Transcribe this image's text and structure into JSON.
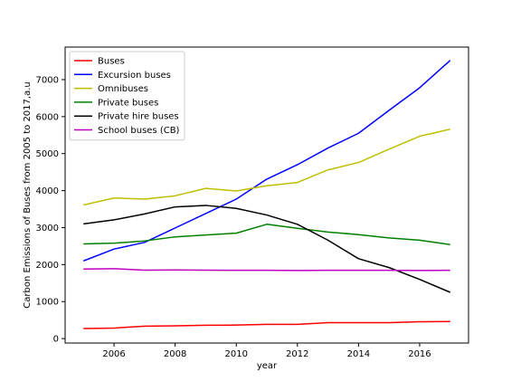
{
  "chart_data": {
    "type": "line",
    "title": "",
    "xlabel": "year",
    "ylabel": "Carbon Emissions of Buses from 2005 to 2017,a.u",
    "x": [
      2005,
      2006,
      2007,
      2008,
      2009,
      2010,
      2011,
      2012,
      2013,
      2014,
      2015,
      2016,
      2017
    ],
    "xlim": [
      2004.4,
      2017.6
    ],
    "ylim": [
      -120,
      7880
    ],
    "xticks": [
      2006,
      2008,
      2010,
      2012,
      2014,
      2016
    ],
    "yticks": [
      0,
      1000,
      2000,
      3000,
      4000,
      5000,
      6000,
      7000
    ],
    "grid": false,
    "legend_position": "top-left",
    "series": [
      {
        "name": "Buses",
        "color": "#ff0000",
        "values": [
          270,
          285,
          335,
          345,
          360,
          365,
          385,
          385,
          430,
          430,
          430,
          455,
          460
        ]
      },
      {
        "name": "Excursion buses",
        "color": "#0000ff",
        "values": [
          2100,
          2420,
          2600,
          2990,
          3380,
          3770,
          4310,
          4700,
          5150,
          5550,
          6170,
          6780,
          7520
        ]
      },
      {
        "name": "Omnibuses",
        "color": "#bfbf00",
        "values": [
          3610,
          3800,
          3770,
          3860,
          4060,
          3990,
          4130,
          4220,
          4560,
          4760,
          5120,
          5470,
          5660
        ]
      },
      {
        "name": "Private buses",
        "color": "#008000",
        "values": [
          2560,
          2580,
          2640,
          2750,
          2800,
          2850,
          3090,
          2980,
          2880,
          2810,
          2720,
          2660,
          2540
        ]
      },
      {
        "name": "Private hire buses",
        "color": "#000000",
        "values": [
          3100,
          3210,
          3370,
          3560,
          3600,
          3520,
          3340,
          3090,
          2660,
          2160,
          1920,
          1600,
          1250
        ]
      },
      {
        "name": "School buses (CB)",
        "color": "#bf00bf",
        "values": [
          1880,
          1890,
          1850,
          1855,
          1850,
          1845,
          1845,
          1840,
          1845,
          1845,
          1845,
          1840,
          1845
        ]
      }
    ]
  }
}
